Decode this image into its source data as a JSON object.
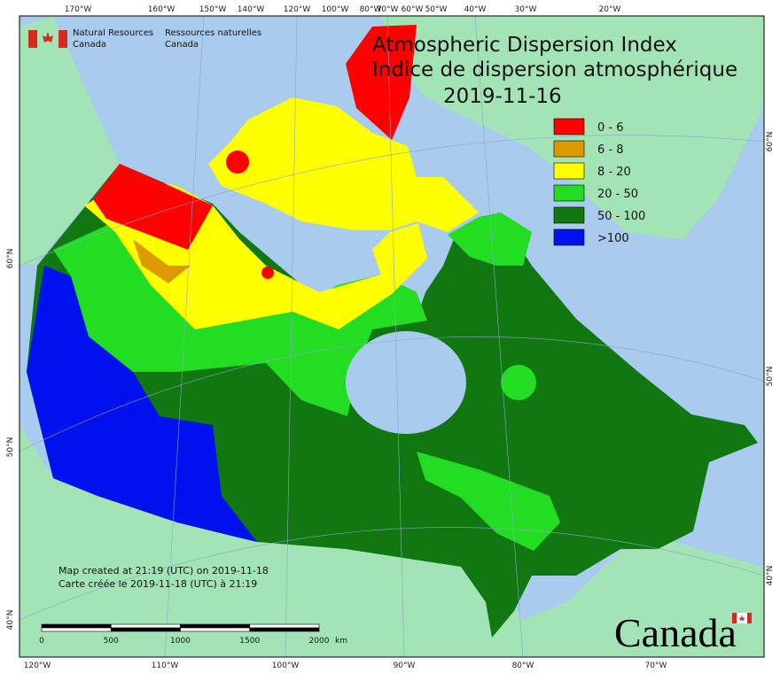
{
  "header": {
    "department_en": [
      "Natural Resources",
      "Canada"
    ],
    "department_fr": [
      "Ressources naturelles",
      "Canada"
    ]
  },
  "title": {
    "lines": [
      "Atmospheric Dispersion Index",
      "Indice de dispersion atmosphérique",
      "2019-11-16"
    ]
  },
  "legend": {
    "items": [
      {
        "label": "0 - 6",
        "color": "#ff0000"
      },
      {
        "label": "6 - 8",
        "color": "#dd9900"
      },
      {
        "label": "8 - 20",
        "color": "#ffff00"
      },
      {
        "label": "20 - 50",
        "color": "#22dd22"
      },
      {
        "label": "50 - 100",
        "color": "#117711"
      },
      {
        "label": ">100",
        "color": "#0011ee"
      }
    ]
  },
  "graticule": {
    "top_labels": [
      "170°W",
      "160°W",
      "150°W",
      "140°W",
      "120°W",
      "100°W",
      "80°W",
      "70°W",
      "60°W",
      "50°W",
      "40°W",
      "30°W",
      "20°W"
    ],
    "bottom_labels": [
      "120°W",
      "110°W",
      "100°W",
      "90°W",
      "80°W",
      "70°W"
    ],
    "left_labels": [
      "60°N",
      "50°N",
      "40°N"
    ],
    "right_labels": [
      "60°N",
      "50°N",
      "40°N"
    ]
  },
  "credits": [
    "Map created at 21:19 (UTC) on 2019-11-18",
    "Carte créée le 2019-11-18 (UTC) à 21:19"
  ],
  "scale_bar": {
    "labels": [
      "0",
      "500",
      "1000",
      "1500",
      "2000"
    ],
    "unit": "km"
  },
  "wordmark": "Canada"
}
